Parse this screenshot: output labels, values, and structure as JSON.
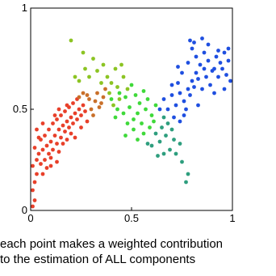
{
  "caption": {
    "line1": "each point makes a weighted contribution",
    "line2": "to the estimation of ALL components"
  },
  "chart_data": {
    "type": "scatter",
    "title": "",
    "xlabel": "",
    "ylabel": "",
    "xlim": [
      0,
      1
    ],
    "ylim": [
      0,
      1
    ],
    "grid": false,
    "legend": "none",
    "xticks": [
      {
        "value": 0,
        "label": "0"
      },
      {
        "value": 0.5,
        "label": "0.5"
      },
      {
        "value": 1,
        "label": "1"
      }
    ],
    "yticks": [
      {
        "value": 0,
        "label": "0"
      },
      {
        "value": 0.5,
        "label": "0.5"
      },
      {
        "value": 1,
        "label": "1"
      }
    ],
    "colors": {
      "red": "#e8402a",
      "orange": "#c9702a",
      "yellow_green": "#8cc423",
      "green": "#3fd93a",
      "teal": "#2e9e7e",
      "blue": "#1f4fe0"
    },
    "points": [
      [
        0.01,
        0.02,
        "red"
      ],
      [
        0.02,
        0.05,
        "red"
      ],
      [
        0.01,
        0.1,
        "red"
      ],
      [
        0.02,
        0.14,
        "red"
      ],
      [
        0.03,
        0.18,
        "red"
      ],
      [
        0.01,
        0.22,
        "red"
      ],
      [
        0.03,
        0.25,
        "red"
      ],
      [
        0.05,
        0.23,
        "red"
      ],
      [
        0.04,
        0.28,
        "red"
      ],
      [
        0.06,
        0.3,
        "red"
      ],
      [
        0.02,
        0.31,
        "red"
      ],
      [
        0.07,
        0.25,
        "red"
      ],
      [
        0.08,
        0.32,
        "red"
      ],
      [
        0.05,
        0.35,
        "red"
      ],
      [
        0.09,
        0.28,
        "red"
      ],
      [
        0.1,
        0.34,
        "red"
      ],
      [
        0.07,
        0.37,
        "red"
      ],
      [
        0.11,
        0.3,
        "red"
      ],
      [
        0.12,
        0.37,
        "red"
      ],
      [
        0.09,
        0.4,
        "red"
      ],
      [
        0.13,
        0.33,
        "red"
      ],
      [
        0.14,
        0.4,
        "red"
      ],
      [
        0.11,
        0.43,
        "red"
      ],
      [
        0.15,
        0.36,
        "red"
      ],
      [
        0.16,
        0.42,
        "red"
      ],
      [
        0.13,
        0.45,
        "red"
      ],
      [
        0.17,
        0.39,
        "red"
      ],
      [
        0.18,
        0.44,
        "red"
      ],
      [
        0.15,
        0.47,
        "red"
      ],
      [
        0.19,
        0.41,
        "red"
      ],
      [
        0.2,
        0.46,
        "red"
      ],
      [
        0.17,
        0.49,
        "red"
      ],
      [
        0.21,
        0.43,
        "red"
      ],
      [
        0.22,
        0.48,
        "red"
      ],
      [
        0.19,
        0.51,
        "red"
      ],
      [
        0.23,
        0.45,
        "red"
      ],
      [
        0.24,
        0.5,
        "red"
      ],
      [
        0.21,
        0.53,
        "red"
      ],
      [
        0.25,
        0.47,
        "red"
      ],
      [
        0.26,
        0.52,
        "red"
      ],
      [
        0.23,
        0.55,
        "red"
      ],
      [
        0.27,
        0.49,
        "red"
      ],
      [
        0.1,
        0.22,
        "red"
      ],
      [
        0.14,
        0.29,
        "red"
      ],
      [
        0.18,
        0.35,
        "red"
      ],
      [
        0.06,
        0.18,
        "red"
      ],
      [
        0.12,
        0.47,
        "red"
      ],
      [
        0.08,
        0.21,
        "red"
      ],
      [
        0.04,
        0.36,
        "red"
      ],
      [
        0.16,
        0.33,
        "red"
      ],
      [
        0.2,
        0.38,
        "red"
      ],
      [
        0.25,
        0.41,
        "red"
      ],
      [
        0.03,
        0.4,
        "red"
      ],
      [
        0.1,
        0.26,
        "red"
      ],
      [
        0.22,
        0.36,
        "red"
      ],
      [
        0.28,
        0.44,
        "red"
      ],
      [
        0.14,
        0.5,
        "red"
      ],
      [
        0.06,
        0.43,
        "red"
      ],
      [
        0.18,
        0.52,
        "red"
      ],
      [
        0.13,
        0.24,
        "red"
      ],
      [
        0.3,
        0.5,
        "orange"
      ],
      [
        0.32,
        0.54,
        "orange"
      ],
      [
        0.34,
        0.51,
        "orange"
      ],
      [
        0.29,
        0.55,
        "orange"
      ],
      [
        0.36,
        0.56,
        "orange"
      ],
      [
        0.33,
        0.58,
        "orange"
      ],
      [
        0.31,
        0.47,
        "orange"
      ],
      [
        0.35,
        0.53,
        "orange"
      ],
      [
        0.28,
        0.57,
        "orange"
      ],
      [
        0.37,
        0.6,
        "orange"
      ],
      [
        0.24,
        0.56,
        "orange"
      ],
      [
        0.26,
        0.58,
        "orange"
      ],
      [
        0.2,
        0.84,
        "yellow_green"
      ],
      [
        0.26,
        0.78,
        "yellow_green"
      ],
      [
        0.31,
        0.75,
        "yellow_green"
      ],
      [
        0.27,
        0.7,
        "yellow_green"
      ],
      [
        0.33,
        0.69,
        "yellow_green"
      ],
      [
        0.36,
        0.72,
        "yellow_green"
      ],
      [
        0.38,
        0.66,
        "yellow_green"
      ],
      [
        0.24,
        0.64,
        "yellow_green"
      ],
      [
        0.4,
        0.63,
        "yellow_green"
      ],
      [
        0.42,
        0.7,
        "yellow_green"
      ],
      [
        0.39,
        0.58,
        "yellow_green"
      ],
      [
        0.43,
        0.61,
        "yellow_green"
      ],
      [
        0.46,
        0.66,
        "yellow_green"
      ],
      [
        0.44,
        0.55,
        "yellow_green"
      ],
      [
        0.48,
        0.6,
        "yellow_green"
      ],
      [
        0.41,
        0.52,
        "yellow_green"
      ],
      [
        0.35,
        0.63,
        "yellow_green"
      ],
      [
        0.29,
        0.66,
        "yellow_green"
      ],
      [
        0.45,
        0.72,
        "yellow_green"
      ],
      [
        0.22,
        0.66,
        "yellow_green"
      ],
      [
        0.47,
        0.56,
        "green"
      ],
      [
        0.5,
        0.62,
        "green"
      ],
      [
        0.52,
        0.57,
        "green"
      ],
      [
        0.49,
        0.51,
        "green"
      ],
      [
        0.54,
        0.53,
        "green"
      ],
      [
        0.56,
        0.59,
        "green"
      ],
      [
        0.53,
        0.48,
        "green"
      ],
      [
        0.57,
        0.5,
        "green"
      ],
      [
        0.51,
        0.45,
        "green"
      ],
      [
        0.58,
        0.55,
        "green"
      ],
      [
        0.55,
        0.43,
        "green"
      ],
      [
        0.6,
        0.47,
        "green"
      ],
      [
        0.46,
        0.48,
        "green"
      ],
      [
        0.43,
        0.5,
        "green"
      ],
      [
        0.48,
        0.43,
        "green"
      ],
      [
        0.44,
        0.58,
        "green"
      ],
      [
        0.59,
        0.41,
        "green"
      ],
      [
        0.62,
        0.52,
        "green"
      ],
      [
        0.4,
        0.55,
        "green"
      ],
      [
        0.51,
        0.4,
        "green"
      ],
      [
        0.42,
        0.46,
        "green"
      ],
      [
        0.56,
        0.38,
        "green"
      ],
      [
        0.47,
        0.37,
        "green"
      ],
      [
        0.53,
        0.35,
        "green"
      ],
      [
        0.61,
        0.44,
        "green"
      ],
      [
        0.62,
        0.38,
        "teal"
      ],
      [
        0.65,
        0.41,
        "teal"
      ],
      [
        0.64,
        0.34,
        "teal"
      ],
      [
        0.67,
        0.37,
        "teal"
      ],
      [
        0.6,
        0.32,
        "teal"
      ],
      [
        0.69,
        0.3,
        "teal"
      ],
      [
        0.66,
        0.28,
        "teal"
      ],
      [
        0.71,
        0.35,
        "teal"
      ],
      [
        0.63,
        0.27,
        "teal"
      ],
      [
        0.68,
        0.43,
        "teal"
      ],
      [
        0.58,
        0.33,
        "teal"
      ],
      [
        0.72,
        0.28,
        "teal"
      ],
      [
        0.7,
        0.4,
        "teal"
      ],
      [
        0.75,
        0.24,
        "teal"
      ],
      [
        0.78,
        0.18,
        "teal"
      ],
      [
        0.77,
        0.14,
        "teal"
      ],
      [
        0.74,
        0.33,
        "teal"
      ],
      [
        0.66,
        0.46,
        "teal"
      ],
      [
        0.64,
        0.5,
        "blue"
      ],
      [
        0.66,
        0.55,
        "blue"
      ],
      [
        0.68,
        0.5,
        "blue"
      ],
      [
        0.7,
        0.57,
        "blue"
      ],
      [
        0.72,
        0.52,
        "blue"
      ],
      [
        0.71,
        0.46,
        "blue"
      ],
      [
        0.74,
        0.58,
        "blue"
      ],
      [
        0.73,
        0.63,
        "blue"
      ],
      [
        0.76,
        0.54,
        "blue"
      ],
      [
        0.75,
        0.68,
        "blue"
      ],
      [
        0.78,
        0.6,
        "blue"
      ],
      [
        0.77,
        0.5,
        "blue"
      ],
      [
        0.8,
        0.64,
        "blue"
      ],
      [
        0.79,
        0.57,
        "blue"
      ],
      [
        0.82,
        0.68,
        "blue"
      ],
      [
        0.81,
        0.61,
        "blue"
      ],
      [
        0.84,
        0.72,
        "blue"
      ],
      [
        0.83,
        0.65,
        "blue"
      ],
      [
        0.86,
        0.7,
        "blue"
      ],
      [
        0.85,
        0.6,
        "blue"
      ],
      [
        0.88,
        0.74,
        "blue"
      ],
      [
        0.87,
        0.66,
        "blue"
      ],
      [
        0.9,
        0.69,
        "blue"
      ],
      [
        0.89,
        0.62,
        "blue"
      ],
      [
        0.92,
        0.76,
        "blue"
      ],
      [
        0.91,
        0.7,
        "blue"
      ],
      [
        0.94,
        0.73,
        "blue"
      ],
      [
        0.93,
        0.66,
        "blue"
      ],
      [
        0.96,
        0.78,
        "blue"
      ],
      [
        0.95,
        0.7,
        "blue"
      ],
      [
        0.98,
        0.74,
        "blue"
      ],
      [
        0.97,
        0.67,
        "blue"
      ],
      [
        0.99,
        0.64,
        "blue"
      ],
      [
        0.98,
        0.8,
        "blue"
      ],
      [
        0.8,
        0.8,
        "blue"
      ],
      [
        0.82,
        0.76,
        "blue"
      ],
      [
        0.78,
        0.73,
        "blue"
      ],
      [
        0.76,
        0.47,
        "blue"
      ],
      [
        0.83,
        0.52,
        "blue"
      ],
      [
        0.74,
        0.44,
        "blue"
      ],
      [
        0.81,
        0.83,
        "blue"
      ],
      [
        0.86,
        0.78,
        "blue"
      ],
      [
        0.91,
        0.58,
        "blue"
      ],
      [
        0.88,
        0.82,
        "blue"
      ],
      [
        0.79,
        0.84,
        "blue"
      ],
      [
        0.7,
        0.62,
        "blue"
      ],
      [
        0.73,
        0.71,
        "blue"
      ],
      [
        0.85,
        0.85,
        "blue"
      ],
      [
        0.93,
        0.79,
        "blue"
      ],
      [
        0.96,
        0.6,
        "blue"
      ]
    ]
  }
}
